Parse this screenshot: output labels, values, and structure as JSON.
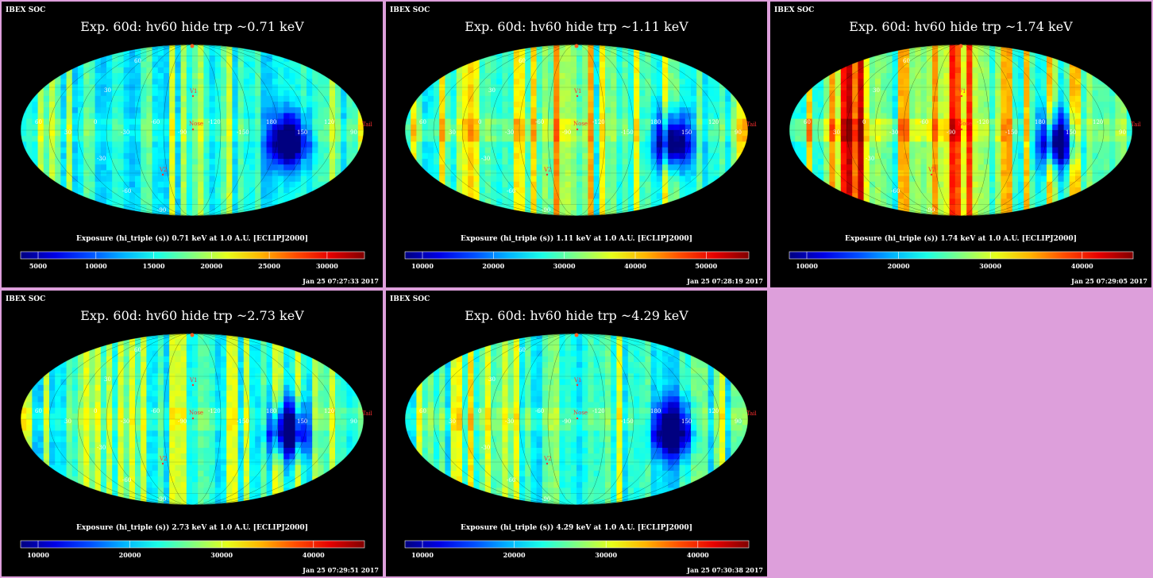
{
  "org_label": "IBEX SOC",
  "map_labels": {
    "lat": [
      "60",
      "30",
      "-30",
      "-60",
      "-90"
    ],
    "lon": [
      "60",
      "30",
      "0",
      "-30",
      "-60",
      "-90",
      "-120",
      "-150",
      "180",
      "150",
      "120",
      "90"
    ],
    "v1": "V1",
    "v2": "V2",
    "nose": "Nose",
    "tail": "Tail"
  },
  "panels": [
    {
      "title": "Exp.   60d: hv60 hide trp ~0.71 keV",
      "colorbar_title": "Exposure (hi_triple (s))  0.71 keV at 1.0 A.U. [ECLIPJ2000]",
      "colorbar_ticks": [
        "5000",
        "10000",
        "15000",
        "20000",
        "25000",
        "30000"
      ],
      "timestamp": "Jan 25 07:27:33 2017",
      "warmth": 0.0
    },
    {
      "title": "Exp.   60d: hv60 hide trp ~1.11 keV",
      "colorbar_title": "Exposure (hi_triple (s))  1.11 keV at 1.0 A.U. [ECLIPJ2000]",
      "colorbar_ticks": [
        "10000",
        "20000",
        "30000",
        "40000",
        "50000"
      ],
      "timestamp": "Jan 25 07:28:19 2017",
      "warmth": 0.6
    },
    {
      "title": "Exp.   60d: hv60 hide trp ~1.74 keV",
      "colorbar_title": "Exposure (hi_triple (s))  1.74 keV at 1.0 A.U. [ECLIPJ2000]",
      "colorbar_ticks": [
        "10000",
        "20000",
        "30000",
        "40000"
      ],
      "timestamp": "Jan 25 07:29:05 2017",
      "warmth": 1.0
    },
    {
      "title": "Exp.   60d: hv60 hide trp ~2.73 keV",
      "colorbar_title": "Exposure (hi_triple (s))  2.73 keV at 1.0 A.U. [ECLIPJ2000]",
      "colorbar_ticks": [
        "10000",
        "20000",
        "30000",
        "40000"
      ],
      "timestamp": "Jan 25 07:29:51 2017",
      "warmth": 0.1
    },
    {
      "title": "Exp.   60d: hv60 hide trp ~4.29 keV",
      "colorbar_title": "Exposure (hi_triple (s))  4.29 keV at 1.0 A.U. [ECLIPJ2000]",
      "colorbar_ticks": [
        "10000",
        "20000",
        "30000",
        "40000"
      ],
      "timestamp": "Jan 25 07:30:38 2017",
      "warmth": 0.2
    }
  ]
}
